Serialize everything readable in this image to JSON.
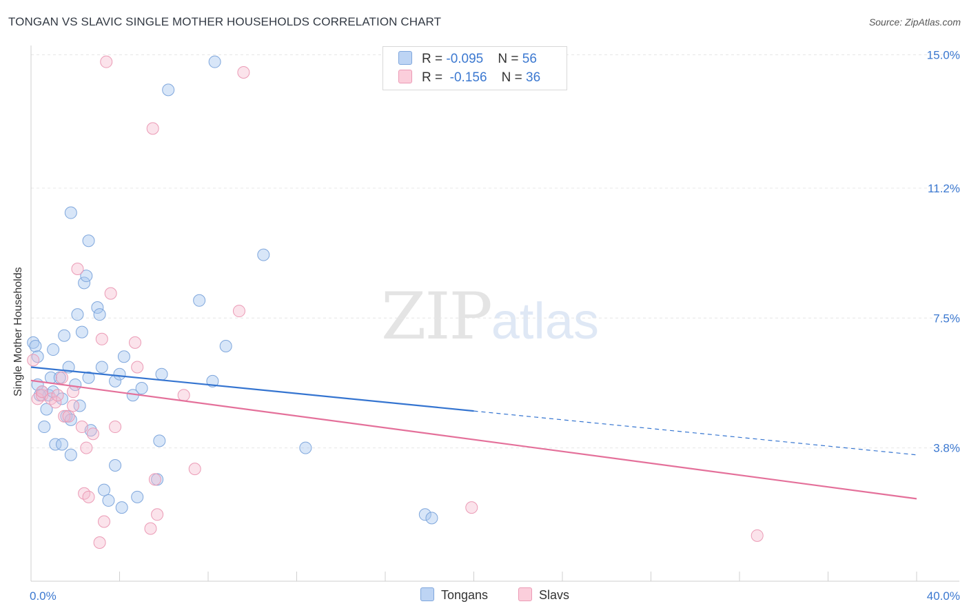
{
  "header": {
    "title": "TONGAN VS SLAVIC SINGLE MOTHER HOUSEHOLDS CORRELATION CHART",
    "source": "Source: ZipAtlas.com"
  },
  "watermark": {
    "zip": "ZIP",
    "atlas": "atlas"
  },
  "legend_top": {
    "rows": [
      {
        "r_label": "R = ",
        "r_value": "-0.095",
        "n_label": "N = ",
        "n_value": "56"
      },
      {
        "r_label": "R = ",
        "r_value": "-0.156",
        "n_label": "N = ",
        "n_value": "36"
      }
    ]
  },
  "legend_bottom": {
    "items": [
      "Tongans",
      "Slavs"
    ]
  },
  "chart_data": {
    "type": "scatter",
    "title": "TONGAN VS SLAVIC SINGLE MOTHER HOUSEHOLDS CORRELATION CHART",
    "ylabel": "Single Mother Households",
    "xlabel": "",
    "xlim": [
      0,
      40
    ],
    "ylim": [
      0,
      15.6
    ],
    "x_ticks_labels": [
      "0.0%",
      "40.0%"
    ],
    "y_ticks": [
      3.8,
      7.5,
      11.2,
      15.0
    ],
    "y_tick_labels": [
      "3.8%",
      "7.5%",
      "11.2%",
      "15.0%"
    ],
    "grid": true,
    "legend_position": "top-center",
    "colors": {
      "Tongans": "#a9c8f0",
      "Tongans_line": "#3474d0",
      "Slavs": "#f6b8cc",
      "Slavs_line": "#e4709a"
    },
    "series": [
      {
        "name": "Tongans",
        "trend": {
          "x": [
            0,
            20
          ],
          "y": [
            6.1,
            4.85
          ],
          "dashed_extension_to_x": 40,
          "dashed_end_y": 3.6
        },
        "points": [
          [
            0.1,
            6.8
          ],
          [
            0.2,
            6.7
          ],
          [
            0.3,
            6.4
          ],
          [
            0.3,
            5.6
          ],
          [
            0.5,
            5.4
          ],
          [
            0.6,
            4.4
          ],
          [
            0.7,
            4.9
          ],
          [
            0.8,
            5.3
          ],
          [
            0.9,
            5.8
          ],
          [
            1.0,
            5.4
          ],
          [
            1.0,
            6.6
          ],
          [
            1.1,
            3.9
          ],
          [
            1.3,
            5.8
          ],
          [
            1.4,
            3.9
          ],
          [
            1.4,
            5.2
          ],
          [
            1.5,
            7.0
          ],
          [
            1.6,
            4.7
          ],
          [
            1.7,
            6.1
          ],
          [
            1.8,
            4.6
          ],
          [
            1.8,
            3.6
          ],
          [
            1.8,
            10.5
          ],
          [
            2.0,
            5.6
          ],
          [
            2.1,
            7.6
          ],
          [
            2.2,
            5.0
          ],
          [
            2.3,
            7.1
          ],
          [
            2.4,
            8.5
          ],
          [
            2.5,
            8.7
          ],
          [
            2.6,
            5.8
          ],
          [
            2.6,
            9.7
          ],
          [
            2.7,
            4.3
          ],
          [
            3.0,
            7.8
          ],
          [
            3.1,
            7.6
          ],
          [
            3.2,
            6.1
          ],
          [
            3.3,
            2.6
          ],
          [
            3.5,
            2.3
          ],
          [
            3.8,
            3.3
          ],
          [
            3.8,
            5.7
          ],
          [
            4.0,
            5.9
          ],
          [
            4.1,
            2.1
          ],
          [
            4.2,
            6.4
          ],
          [
            4.6,
            5.3
          ],
          [
            4.8,
            2.4
          ],
          [
            5.0,
            5.5
          ],
          [
            5.7,
            2.9
          ],
          [
            5.8,
            4.0
          ],
          [
            5.9,
            5.9
          ],
          [
            6.2,
            14.0
          ],
          [
            7.6,
            8.0
          ],
          [
            8.2,
            5.7
          ],
          [
            8.3,
            14.8
          ],
          [
            8.8,
            6.7
          ],
          [
            10.5,
            9.3
          ],
          [
            12.4,
            3.8
          ],
          [
            17.8,
            1.9
          ],
          [
            18.1,
            1.8
          ],
          [
            0.4,
            5.3
          ]
        ]
      },
      {
        "name": "Slavs",
        "trend": {
          "x": [
            0,
            40
          ],
          "y": [
            5.72,
            2.35
          ]
        },
        "points": [
          [
            0.1,
            6.3
          ],
          [
            0.3,
            5.2
          ],
          [
            0.5,
            5.3
          ],
          [
            0.9,
            5.2
          ],
          [
            1.1,
            5.1
          ],
          [
            1.4,
            5.8
          ],
          [
            1.5,
            4.7
          ],
          [
            1.7,
            4.7
          ],
          [
            1.9,
            5.4
          ],
          [
            1.9,
            5.0
          ],
          [
            2.1,
            8.9
          ],
          [
            2.3,
            4.4
          ],
          [
            2.4,
            2.5
          ],
          [
            2.5,
            3.8
          ],
          [
            2.6,
            2.4
          ],
          [
            2.8,
            4.2
          ],
          [
            3.1,
            1.1
          ],
          [
            3.2,
            6.9
          ],
          [
            3.3,
            1.7
          ],
          [
            3.4,
            14.8
          ],
          [
            3.6,
            8.2
          ],
          [
            3.8,
            4.4
          ],
          [
            4.7,
            6.8
          ],
          [
            4.8,
            6.1
          ],
          [
            5.4,
            1.5
          ],
          [
            5.5,
            12.9
          ],
          [
            5.6,
            2.9
          ],
          [
            5.7,
            1.9
          ],
          [
            6.9,
            5.3
          ],
          [
            7.4,
            3.2
          ],
          [
            9.4,
            7.7
          ],
          [
            9.6,
            14.5
          ],
          [
            19.9,
            2.1
          ],
          [
            32.8,
            1.3
          ],
          [
            0.5,
            5.4
          ],
          [
            1.2,
            5.3
          ]
        ]
      }
    ]
  }
}
